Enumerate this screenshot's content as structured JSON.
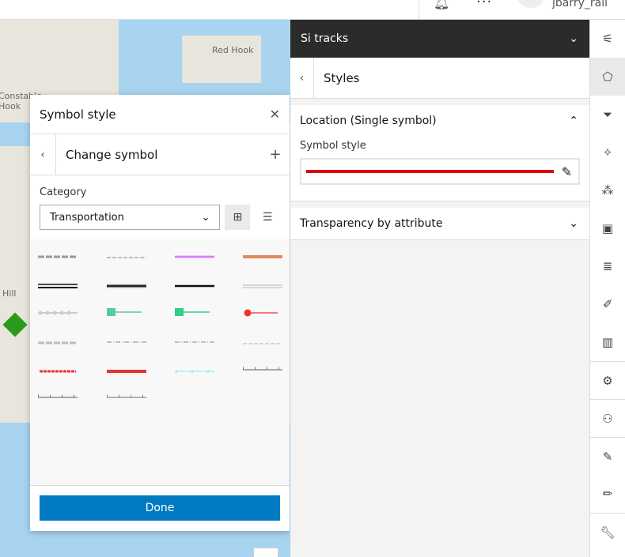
{
  "header": {
    "user": "jbarry_rail",
    "bell_icon": "bell-icon",
    "more_icon": "more-icon"
  },
  "map": {
    "labels": [
      "Red Hook",
      "Constable Hook",
      "Hill"
    ],
    "water_color": "#a8d4f0"
  },
  "symbol_dialog": {
    "title": "Symbol style",
    "subtitle": "Change symbol",
    "category_label": "Category",
    "category_value": "Transportation",
    "done_label": "Done",
    "symbols": [
      {
        "color": "#999999",
        "style": "dashed-ticks"
      },
      {
        "color": "#aaaaaa",
        "style": "dashed"
      },
      {
        "color": "#cc66ff",
        "style": "solid-glow"
      },
      {
        "color": "#e08a5a",
        "style": "thick"
      },
      {
        "color": "#111111",
        "style": "double"
      },
      {
        "color": "#222222",
        "style": "thick-outline"
      },
      {
        "color": "#111111",
        "style": "solid"
      },
      {
        "color": "#cccccc",
        "style": "double-light"
      },
      {
        "color": "#cccccc",
        "style": "dots"
      },
      {
        "color": "#55cc99",
        "style": "marker-square"
      },
      {
        "color": "#33cc88",
        "style": "marker-square"
      },
      {
        "color": "#ee3333",
        "style": "marker-circle"
      },
      {
        "color": "#bbbbbb",
        "style": "dashed-ticks"
      },
      {
        "color": "#888888",
        "style": "dash-dot"
      },
      {
        "color": "#888888",
        "style": "dash-dot"
      },
      {
        "color": "#bbccdd",
        "style": "dashed"
      },
      {
        "color": "#e03333",
        "style": "dashed-thick"
      },
      {
        "color": "#e03333",
        "style": "thick"
      },
      {
        "color": "#88eeee",
        "style": "dots-thin"
      },
      {
        "color": "#777777",
        "style": "ticks"
      },
      {
        "color": "#777777",
        "style": "ticks"
      },
      {
        "color": "#888888",
        "style": "ticks"
      }
    ]
  },
  "panel": {
    "layer_title": "Si tracks",
    "styles_title": "Styles",
    "location_title": "Location (Single symbol)",
    "symbol_style_label": "Symbol style",
    "symbol_color": "#e00000",
    "transparency_title": "Transparency by attribute"
  },
  "toolbar": [
    "properties-icon",
    "styles-icon",
    "filter-icon",
    "effects-icon",
    "clustering-icon",
    "popups-icon",
    "labels-icon",
    "fields-icon",
    "charts-icon",
    "configure-icon",
    "sharing-icon",
    "edit-icon",
    "sketch-icon",
    "tools-icon"
  ]
}
